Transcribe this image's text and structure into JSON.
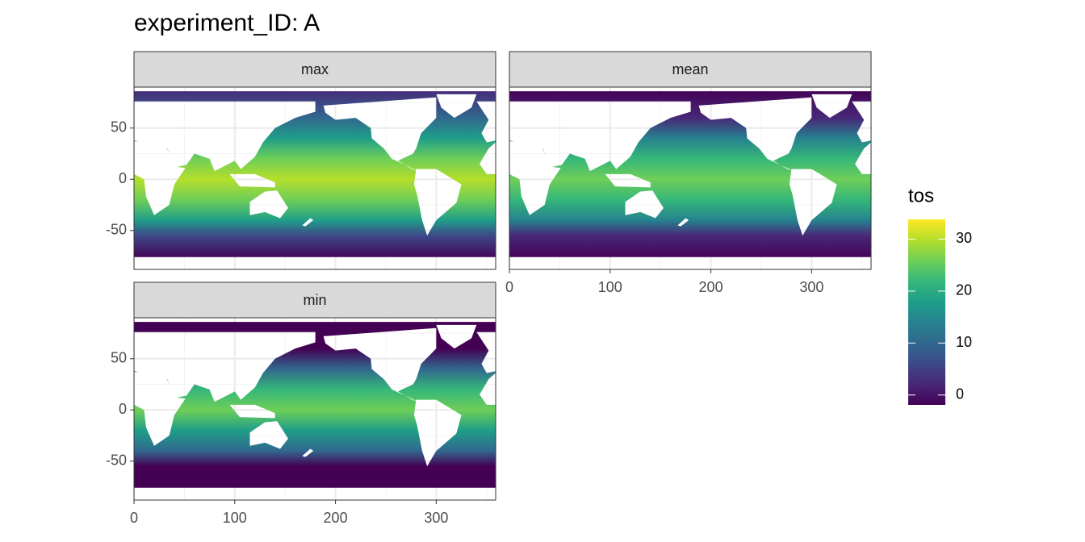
{
  "chart_data": {
    "type": "raster",
    "title": "experiment_ID: A",
    "facets": [
      "max",
      "mean",
      "min"
    ],
    "xlim": [
      0,
      359
    ],
    "xticks": [
      0,
      100,
      200,
      300
    ],
    "ylim": [
      -88,
      90
    ],
    "yticks": [
      -50,
      0,
      50
    ],
    "grid": true,
    "legend": {
      "title": "tos",
      "position": "right",
      "limits": [
        -1.9,
        33.8
      ],
      "ticks": [
        0,
        10,
        20,
        30
      ],
      "palette": [
        "#440154",
        "#482878",
        "#3e4989",
        "#31688e",
        "#26828e",
        "#1f9e89",
        "#35b779",
        "#6ece58",
        "#b5de2b",
        "#fde725"
      ]
    }
  }
}
